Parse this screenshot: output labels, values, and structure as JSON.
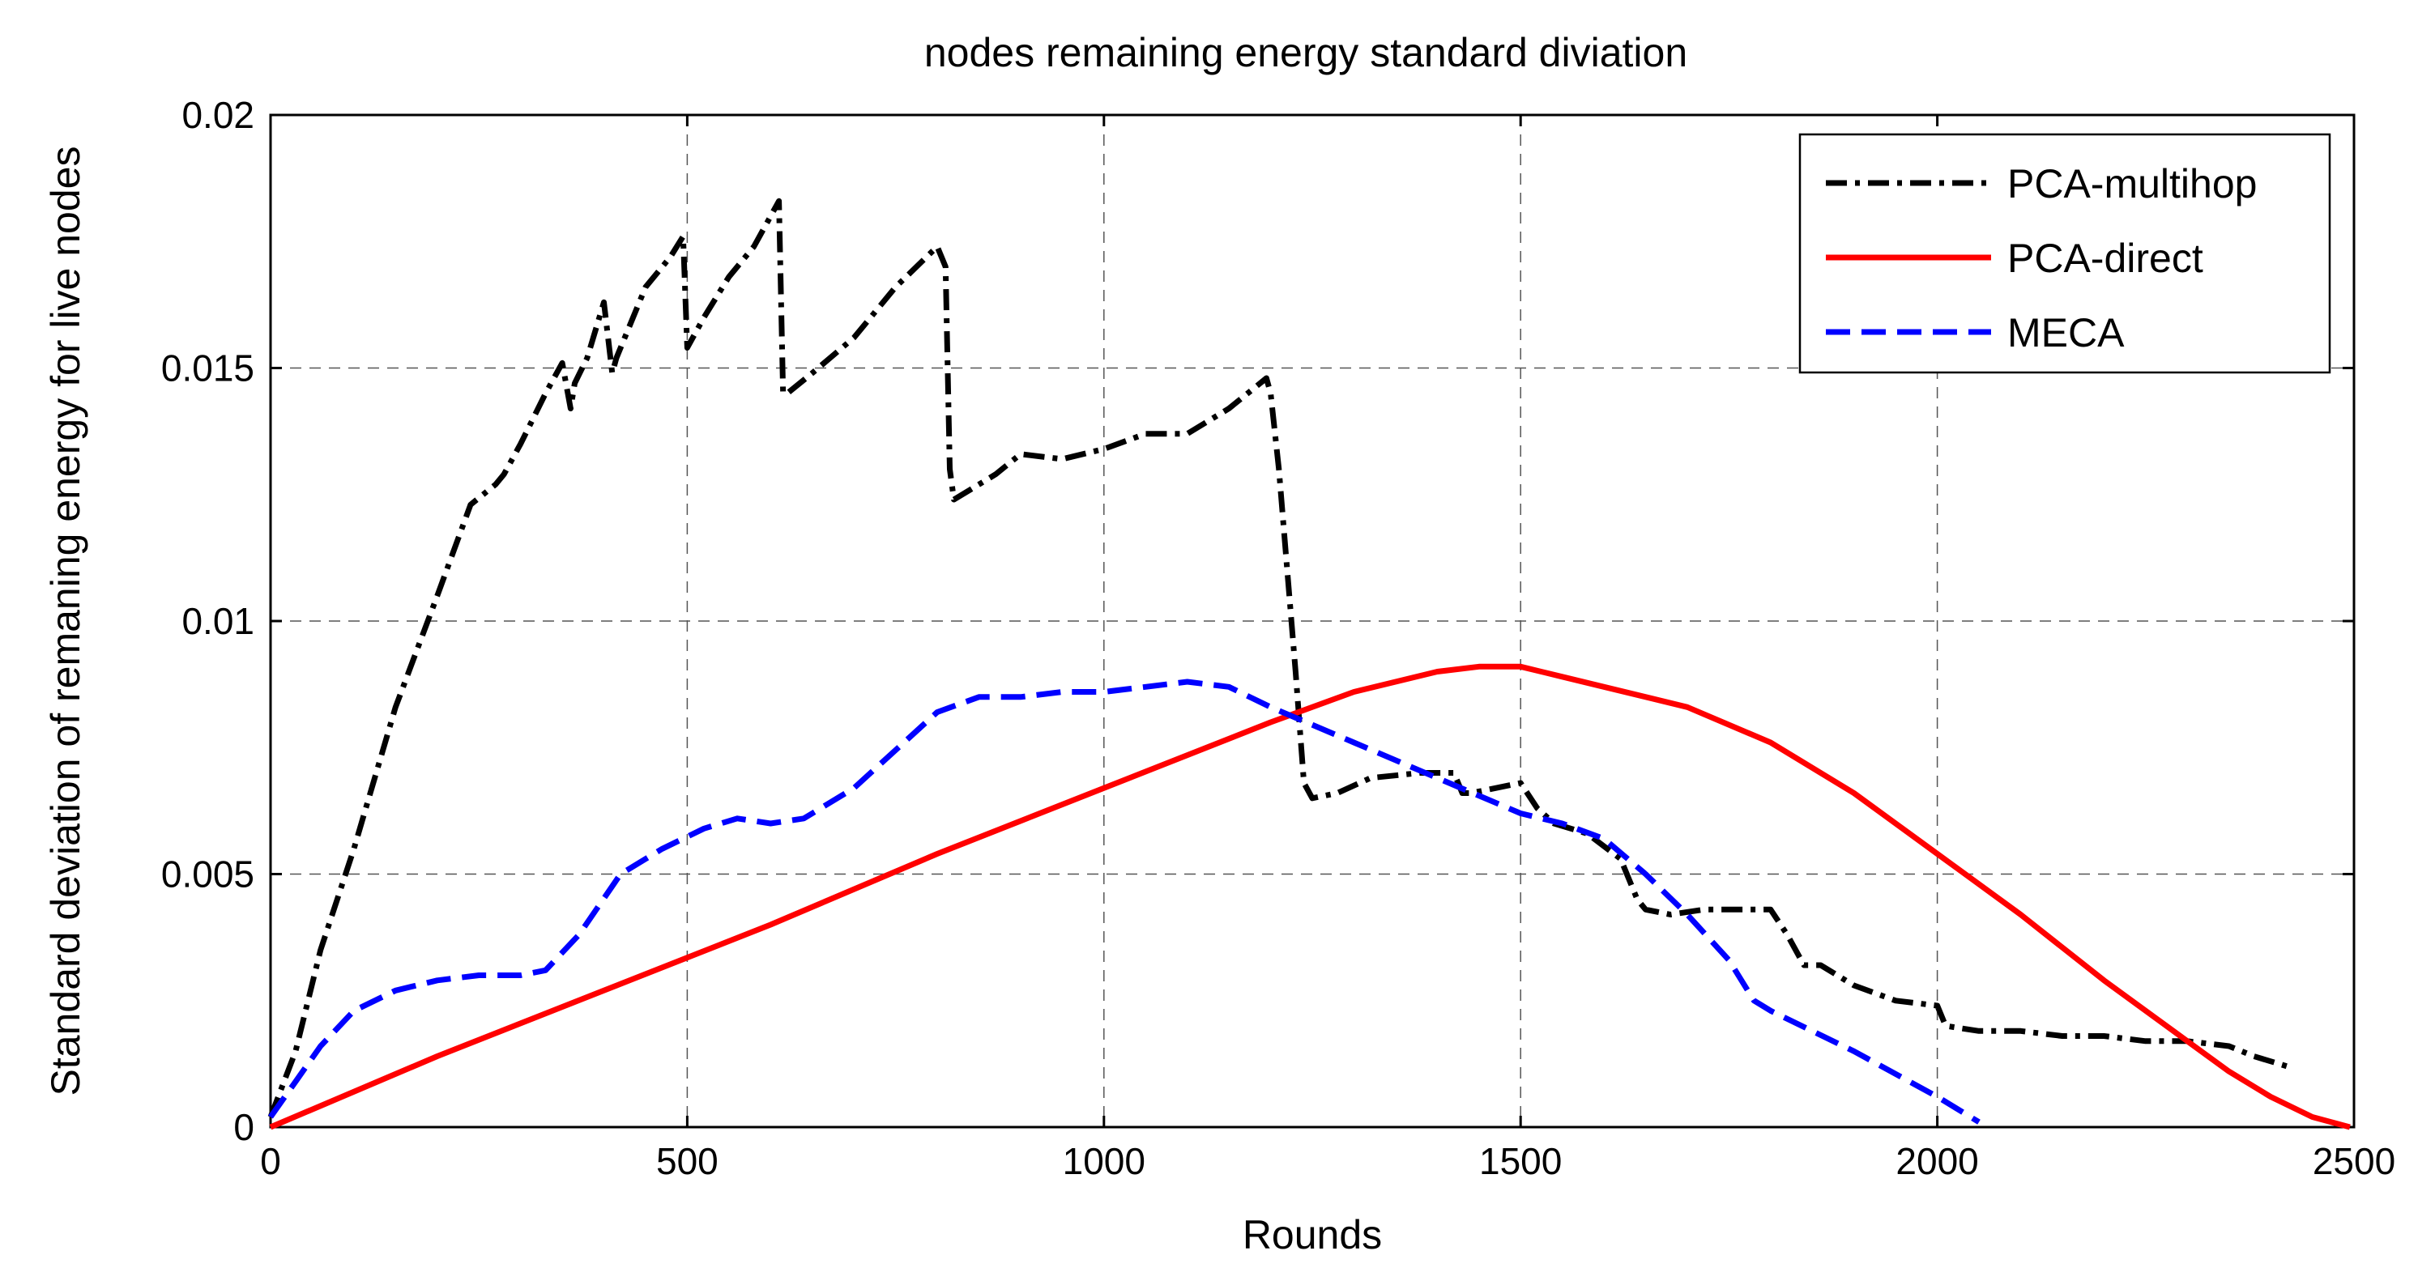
{
  "chart_data": {
    "type": "line",
    "title": "nodes remaining energy standard diviation",
    "xlabel": "Rounds",
    "ylabel": "Standard deviation of remaning energy for live nodes",
    "xlim": [
      0,
      2500
    ],
    "ylim": [
      0,
      0.02
    ],
    "xticks": [
      0,
      500,
      1000,
      1500,
      2000,
      2500
    ],
    "xtick_labels": [
      "0",
      "500",
      "1000",
      "1500",
      "2000",
      "2500"
    ],
    "yticks": [
      0,
      0.005,
      0.01,
      0.015,
      0.02
    ],
    "ytick_labels": [
      "0",
      "0.005",
      "0.01",
      "0.015",
      "0.02"
    ],
    "grid": true,
    "legend_position": "top-right",
    "series": [
      {
        "name": "PCA-multihop",
        "color": "#000000",
        "style": "dashdot",
        "x": [
          0,
          30,
          60,
          100,
          150,
          200,
          240,
          270,
          280,
          300,
          330,
          350,
          360,
          365,
          380,
          400,
          410,
          415,
          430,
          450,
          480,
          495,
          500,
          520,
          550,
          580,
          610,
          615,
          620,
          650,
          700,
          750,
          800,
          810,
          815,
          820,
          830,
          870,
          900,
          950,
          1000,
          1050,
          1100,
          1150,
          1180,
          1195,
          1200,
          1210,
          1220,
          1230,
          1240,
          1250,
          1280,
          1320,
          1380,
          1420,
          1430,
          1440,
          1470,
          1500,
          1520,
          1540,
          1580,
          1620,
          1640,
          1650,
          1680,
          1720,
          1760,
          1800,
          1820,
          1840,
          1860,
          1900,
          1950,
          2000,
          2010,
          2050,
          2100,
          2150,
          2200,
          2250,
          2300,
          2350,
          2380,
          2420
        ],
        "y": [
          0.0002,
          0.0015,
          0.0035,
          0.0055,
          0.0083,
          0.0105,
          0.0123,
          0.0127,
          0.0129,
          0.0135,
          0.0145,
          0.0151,
          0.0142,
          0.0147,
          0.0152,
          0.0163,
          0.0149,
          0.0152,
          0.0158,
          0.0166,
          0.0172,
          0.0176,
          0.0154,
          0.016,
          0.0168,
          0.0174,
          0.0183,
          0.0145,
          0.0145,
          0.0149,
          0.0156,
          0.0166,
          0.0174,
          0.017,
          0.013,
          0.0124,
          0.0125,
          0.0129,
          0.0133,
          0.0132,
          0.0134,
          0.0137,
          0.0137,
          0.0142,
          0.0146,
          0.0148,
          0.0145,
          0.013,
          0.011,
          0.009,
          0.0068,
          0.0065,
          0.0066,
          0.0069,
          0.007,
          0.007,
          0.0066,
          0.0066,
          0.0067,
          0.0068,
          0.0063,
          0.006,
          0.0058,
          0.0053,
          0.0045,
          0.0043,
          0.0042,
          0.0043,
          0.0043,
          0.0043,
          0.0038,
          0.0032,
          0.0032,
          0.0028,
          0.0025,
          0.0024,
          0.002,
          0.0019,
          0.0019,
          0.0018,
          0.0018,
          0.0017,
          0.0017,
          0.0016,
          0.0014,
          0.0012
        ]
      },
      {
        "name": "PCA-direct",
        "color": "#ff0000",
        "style": "solid",
        "x": [
          0,
          200,
          400,
          600,
          800,
          1000,
          1200,
          1300,
          1400,
          1450,
          1500,
          1550,
          1600,
          1700,
          1800,
          1900,
          2000,
          2100,
          2200,
          2300,
          2350,
          2400,
          2450,
          2495
        ],
        "y": [
          0,
          0.0014,
          0.0027,
          0.004,
          0.0054,
          0.0067,
          0.008,
          0.0086,
          0.009,
          0.0091,
          0.0091,
          0.0089,
          0.0087,
          0.0083,
          0.0076,
          0.0066,
          0.0054,
          0.0042,
          0.0029,
          0.0017,
          0.0011,
          0.0006,
          0.0002,
          0
        ]
      },
      {
        "name": "MECA",
        "color": "#0000ff",
        "style": "dashed",
        "x": [
          0,
          30,
          60,
          100,
          150,
          200,
          250,
          300,
          330,
          370,
          420,
          470,
          520,
          560,
          600,
          640,
          700,
          760,
          800,
          850,
          900,
          950,
          1000,
          1050,
          1100,
          1150,
          1200,
          1300,
          1400,
          1500,
          1550,
          1600,
          1650,
          1700,
          1750,
          1780,
          1800,
          1900,
          2000,
          2050
        ],
        "y": [
          0.0002,
          0.0009,
          0.0016,
          0.0023,
          0.0027,
          0.0029,
          0.003,
          0.003,
          0.0031,
          0.0038,
          0.005,
          0.0055,
          0.0059,
          0.0061,
          0.006,
          0.0061,
          0.0067,
          0.0076,
          0.0082,
          0.0085,
          0.0085,
          0.0086,
          0.0086,
          0.0087,
          0.0088,
          0.0087,
          0.0083,
          0.0076,
          0.0069,
          0.0062,
          0.006,
          0.0057,
          0.005,
          0.0042,
          0.0033,
          0.0025,
          0.0023,
          0.0015,
          0.0006,
          0.0001
        ]
      }
    ]
  }
}
